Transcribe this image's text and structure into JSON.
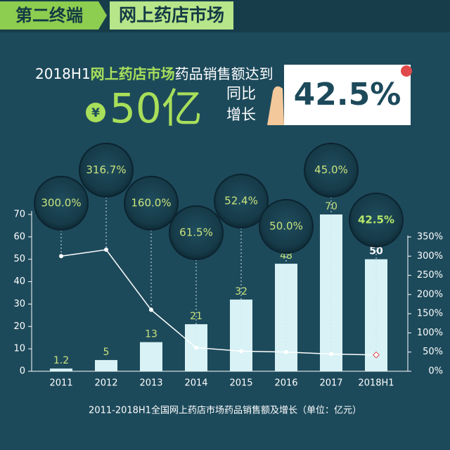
{
  "header": {
    "section": "第二终端",
    "topic": "网上药店市场",
    "headline_prefix": "2018H1",
    "headline_highlight": "网上药店市场",
    "headline_suffix": "药品销售额达到",
    "currency": "¥",
    "amount": "50亿",
    "growth_label_1": "同比",
    "growth_label_2": "增长",
    "growth_value": "42.5%"
  },
  "chart_data": {
    "type": "bar",
    "categories": [
      "2011",
      "2012",
      "2013",
      "2014",
      "2015",
      "2016",
      "2017",
      "2018H1"
    ],
    "series": [
      {
        "type": "bar",
        "color": "#d8f2f6",
        "values": [
          1.2,
          5,
          13,
          21,
          32,
          48,
          70,
          50
        ]
      },
      {
        "type": "line",
        "axis": "y2",
        "color": "#ffffff",
        "values": [
          300,
          316.7,
          160,
          61.5,
          52.4,
          50,
          45,
          42.5
        ],
        "value_labels": [
          "300.0%",
          "316.7%",
          "160.0%",
          "61.5%",
          "52.4%",
          "50.0%",
          "45.0%",
          "42.5%"
        ]
      }
    ],
    "ylim": [
      0,
      70
    ],
    "yticks": [
      0,
      10,
      20,
      30,
      40,
      50,
      60,
      70
    ],
    "y2lim": [
      0,
      350
    ],
    "y2ticks": [
      {
        "value": 0,
        "label": "0%"
      },
      {
        "value": 50,
        "label": "50%"
      },
      {
        "value": 100,
        "label": "100%"
      },
      {
        "value": 150,
        "label": "150%"
      },
      {
        "value": 200,
        "label": "200%"
      },
      {
        "value": 250,
        "label": "250%"
      },
      {
        "value": 300,
        "label": "300%"
      },
      {
        "value": 350,
        "label": "350%"
      }
    ],
    "caption": "2011-2018H1全国网上药店市场药品销售额及增长（单位：亿元）"
  }
}
